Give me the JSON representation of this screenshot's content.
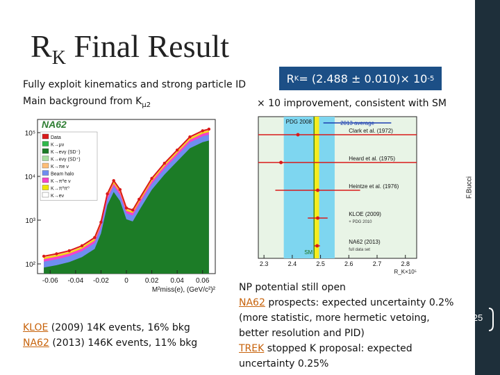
{
  "slide": {
    "title_main": "R",
    "title_sub": "K",
    "title_rest": " Final Result",
    "line1": "Fully exploit kinematics and strong particle ID",
    "line2_pre": "Main background from K",
    "line2_sub": "μ2",
    "rk_label": "R",
    "rk_sub": "K",
    "rk_value": "= (2.488 ± 0.010)× 10",
    "rk_exp": "-5",
    "improvement": "× 10 improvement, consistent with SM",
    "vertical_author": "F.Bucci",
    "page_number": "25",
    "left_bottom": [
      {
        "name": "KLOE",
        "rest": " (2009) 14K events, 16% bkg"
      },
      {
        "name": "NA62",
        "rest": " (2013) 146K events, 11% bkg"
      }
    ],
    "right_bottom": {
      "l1": "NP potential still open",
      "l2_name": "NA62",
      "l2_rest": " prospects: expected uncertainty 0.2%",
      "l3": "(more statistic, more hermetic vetoing,",
      "l4": "better resolution and PID)",
      "l5_name": "TREK",
      "l5_rest": " stopped K proposal: expected",
      "l6": "uncertainty 0.25%"
    }
  },
  "chart_data": [
    {
      "type": "area",
      "experiment_label": "NA62",
      "xlabel": "M²miss(e), (GeV/c²)²",
      "x_ticks": [
        "-0.06",
        "-0.04",
        "-0.02",
        "0",
        "0.02",
        "0.04",
        "0.06"
      ],
      "y_ticks": [
        "10²",
        "10³",
        "10⁴",
        "10⁵"
      ],
      "x_range": [
        -0.07,
        0.07
      ],
      "y_scale": "log",
      "y_range": [
        60,
        200000
      ],
      "legend": [
        "Data",
        "K→μν",
        "K→eνγ (SD⁻)",
        "K→eνγ (SD⁺)",
        "K→πe ν",
        "Beam halo",
        "K→π⁰e ν",
        "K→π⁰π⁰",
        "K→eν"
      ],
      "legend_colors": [
        "#d91a1a",
        "#2fb84a",
        "#1c7c27",
        "#a8e0a0",
        "#ffbe77",
        "#6f8df0",
        "#f542c8",
        "#f0e400",
        "#ffffff"
      ],
      "x": [
        -0.065,
        -0.055,
        -0.045,
        -0.035,
        -0.025,
        -0.02,
        -0.015,
        -0.01,
        -0.005,
        0,
        0.005,
        0.01,
        0.02,
        0.03,
        0.04,
        0.05,
        0.06,
        0.065
      ],
      "data_values": [
        150,
        170,
        200,
        260,
        400,
        900,
        4000,
        8000,
        5000,
        1900,
        1700,
        3000,
        9000,
        20000,
        40000,
        80000,
        110000,
        120000
      ]
    },
    {
      "type": "scatter",
      "xlabel": "R_K×10⁵",
      "x_ticks": [
        "2.3",
        "2.4",
        "2.5",
        "2.6",
        "2.7",
        "2.8"
      ],
      "x_range": [
        2.28,
        2.84
      ],
      "sm_value": 2.477,
      "pdg2008_band": [
        2.37,
        2.55
      ],
      "average_band": [
        2.475,
        2.495
      ],
      "band_labels": [
        "PDG 2008",
        "2013 average",
        "SM"
      ],
      "points": [
        {
          "label": "Clark et al. (1972)",
          "value": 2.42,
          "err_lo": 2.28,
          "err_hi": 2.84
        },
        {
          "label": "Heard et al. (1975)",
          "value": 2.36,
          "err_lo": 2.28,
          "err_hi": 2.84
        },
        {
          "label": "Heintze et al. (1976)",
          "value": 2.49,
          "err_lo": 2.34,
          "err_hi": 2.64
        },
        {
          "label": "KLOE (2009)",
          "value": 2.49,
          "err_lo": 2.455,
          "err_hi": 2.525
        },
        {
          "label": "NA62 (2013)",
          "value": 2.488,
          "err_lo": 2.478,
          "err_hi": 2.498
        }
      ],
      "point_notes": [
        "",
        "",
        "",
        "+ PDG 2010",
        "full data set"
      ]
    }
  ]
}
